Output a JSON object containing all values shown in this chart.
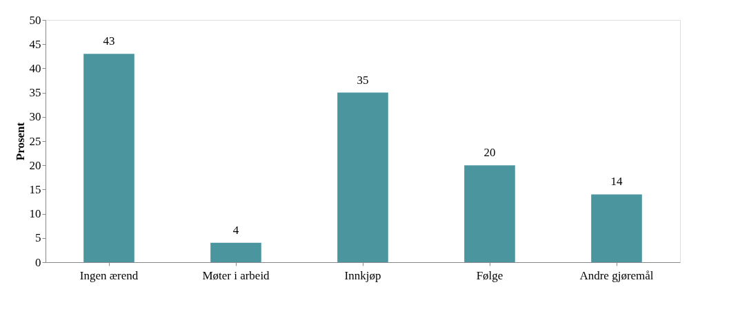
{
  "chart_data": {
    "type": "bar",
    "ylabel": "Prosent",
    "categories": [
      "Ingen ærend",
      "Møter i arbeid",
      "Innkjøp",
      "Følge",
      "Andre gjøremål"
    ],
    "values": [
      43,
      4,
      35,
      20,
      14
    ],
    "color": "#4a959e",
    "ylim": [
      0,
      50
    ],
    "yticks": [
      0,
      5,
      10,
      15,
      20,
      25,
      30,
      35,
      40,
      45,
      50
    ],
    "grid": false,
    "data_labels": true
  }
}
